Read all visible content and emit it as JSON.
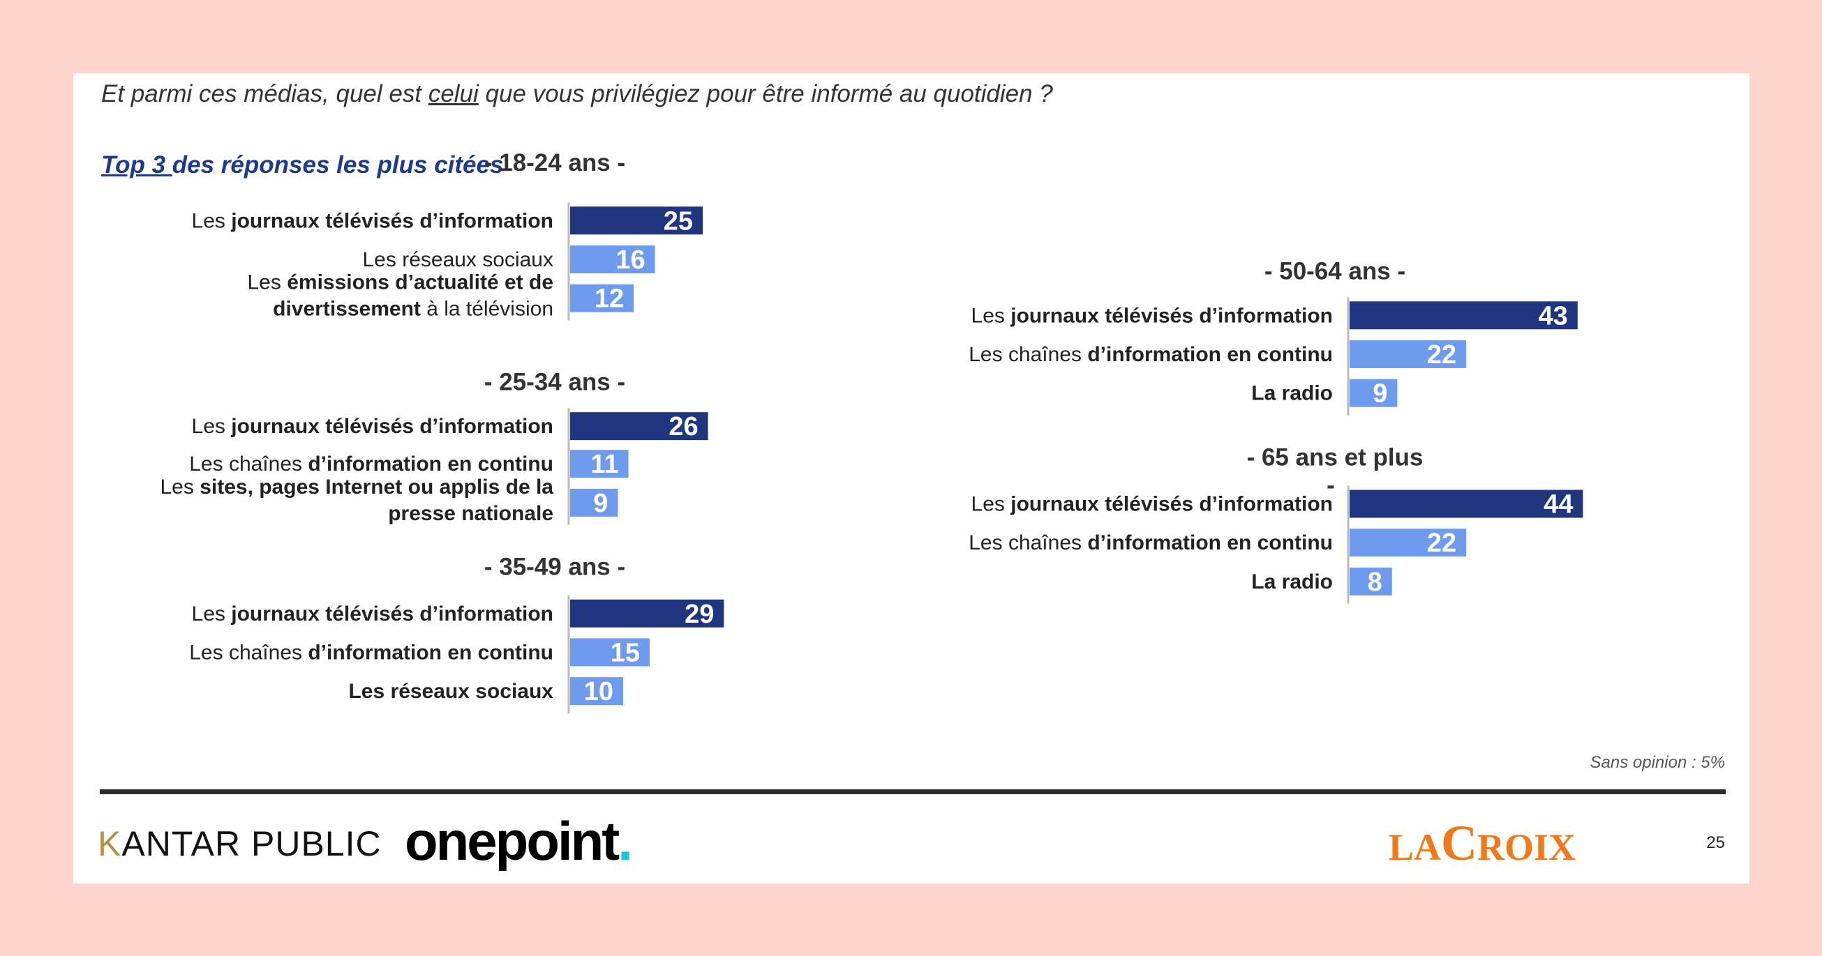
{
  "header": {
    "question_before": "Et parmi ces médias, quel est ",
    "question_underlined": "celui",
    "question_after": " que vous privilégiez pour être informé au quotidien ?",
    "subtitle_underlined": "Top 3 ",
    "subtitle_rest": "des réponses les plus citées"
  },
  "colors": {
    "dark_bar": "#1f357f",
    "light_bar": "#6f9bef",
    "background": "#fdd5cd"
  },
  "chart_data": [
    {
      "type": "bar",
      "title": "- 18-24 ans -",
      "categories": [
        [
          {
            "t": "Les ",
            "b": false
          },
          {
            "t": "journaux télévisés d’information",
            "b": true
          }
        ],
        [
          {
            "t": "Les réseaux sociaux",
            "b": false
          }
        ],
        [
          {
            "t": "Les ",
            "b": false
          },
          {
            "t": "émissions d’actualité et de",
            "b": true
          },
          {
            "br": true
          },
          {
            "t": "divertissement",
            "b": true
          },
          {
            "t": " à la télévision",
            "b": false
          }
        ]
      ],
      "values": [
        25,
        16,
        12
      ]
    },
    {
      "type": "bar",
      "title": "- 25-34 ans -",
      "categories": [
        [
          {
            "t": "Les ",
            "b": false
          },
          {
            "t": "journaux télévisés d’information",
            "b": true
          }
        ],
        [
          {
            "t": "Les chaînes ",
            "b": false
          },
          {
            "t": "d’information en continu",
            "b": true
          }
        ],
        [
          {
            "t": "Les ",
            "b": false
          },
          {
            "t": "sites, pages Internet ou applis de la",
            "b": true
          },
          {
            "br": true
          },
          {
            "t": "presse nationale",
            "b": true
          }
        ]
      ],
      "values": [
        26,
        11,
        9
      ]
    },
    {
      "type": "bar",
      "title": "- 35-49 ans -",
      "categories": [
        [
          {
            "t": "Les ",
            "b": false
          },
          {
            "t": "journaux télévisés d’information",
            "b": true
          }
        ],
        [
          {
            "t": "Les chaînes ",
            "b": false
          },
          {
            "t": "d’information en continu",
            "b": true
          }
        ],
        [
          {
            "t": "Les réseaux sociaux",
            "b": true
          }
        ]
      ],
      "values": [
        29,
        15,
        10
      ]
    },
    {
      "type": "bar",
      "title": "- 50-64 ans -",
      "categories": [
        [
          {
            "t": "Les ",
            "b": false
          },
          {
            "t": "journaux télévisés d’information",
            "b": true
          }
        ],
        [
          {
            "t": "Les chaînes ",
            "b": false
          },
          {
            "t": "d’information en continu",
            "b": true
          }
        ],
        [
          {
            "t": "La radio",
            "b": true
          }
        ]
      ],
      "values": [
        43,
        22,
        9
      ]
    },
    {
      "type": "bar",
      "title": "- 65 ans et plus",
      "title_suffix": "-",
      "categories": [
        [
          {
            "t": "Les ",
            "b": false
          },
          {
            "t": "journaux télévisés d’information",
            "b": true
          }
        ],
        [
          {
            "t": "Les chaînes ",
            "b": false
          },
          {
            "t": "d’information en continu",
            "b": true
          }
        ],
        [
          {
            "t": "La radio",
            "b": true
          }
        ]
      ],
      "values": [
        44,
        22,
        8
      ]
    }
  ],
  "footer": {
    "sans_opinion": "Sans opinion : 5%",
    "kantar_k": "K",
    "kantar_rest": "ANTAR PUBLIC",
    "onepoint": "onepoint",
    "onepoint_dot": ".",
    "lacroix_la": "LA",
    "lacroix_c": "C",
    "lacroix_rest": "ROIX",
    "page_number": "25"
  }
}
